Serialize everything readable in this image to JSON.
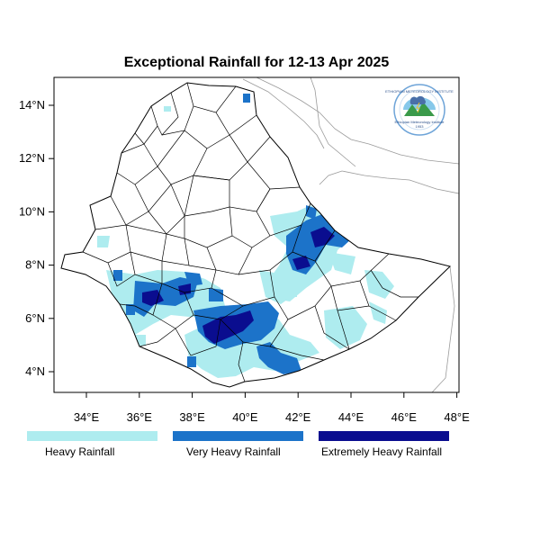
{
  "map": {
    "title": "Exceptional Rainfall for 12-13 Apr 2025",
    "lon_ticks": [
      {
        "value": 34,
        "label": "34°E"
      },
      {
        "value": 36,
        "label": "36°E"
      },
      {
        "value": 38,
        "label": "38°E"
      },
      {
        "value": 40,
        "label": "40°E"
      },
      {
        "value": 42,
        "label": "42°E"
      },
      {
        "value": 44,
        "label": "44°E"
      },
      {
        "value": 46,
        "label": "46°E"
      },
      {
        "value": 48,
        "label": "48°E"
      }
    ],
    "lat_ticks": [
      {
        "value": 4,
        "label": "4°N"
      },
      {
        "value": 6,
        "label": "6°N"
      },
      {
        "value": 8,
        "label": "8°N"
      },
      {
        "value": 10,
        "label": "10°N"
      },
      {
        "value": 12,
        "label": "12°N"
      },
      {
        "value": 14,
        "label": "14°N"
      }
    ],
    "logo": {
      "top_text": "ETHIOPIAN METEOROLOGY INSTITUTE",
      "bottom_text": "Ethiopian Meteorology Institute",
      "year": "1953"
    }
  },
  "legend": {
    "items": [
      {
        "label": "Heavy Rainfall",
        "color": "#aeecef"
      },
      {
        "label": "Very Heavy Rainfall",
        "color": "#1c73c9"
      },
      {
        "label": "Extremely Heavy Rainfall",
        "color": "#0a0d8f"
      }
    ]
  },
  "colors": {
    "heavy": "#aeecef",
    "very_heavy": "#1c73c9",
    "extreme": "#0a0d8f",
    "border": "#000000",
    "neighbor_border": "#999999"
  }
}
